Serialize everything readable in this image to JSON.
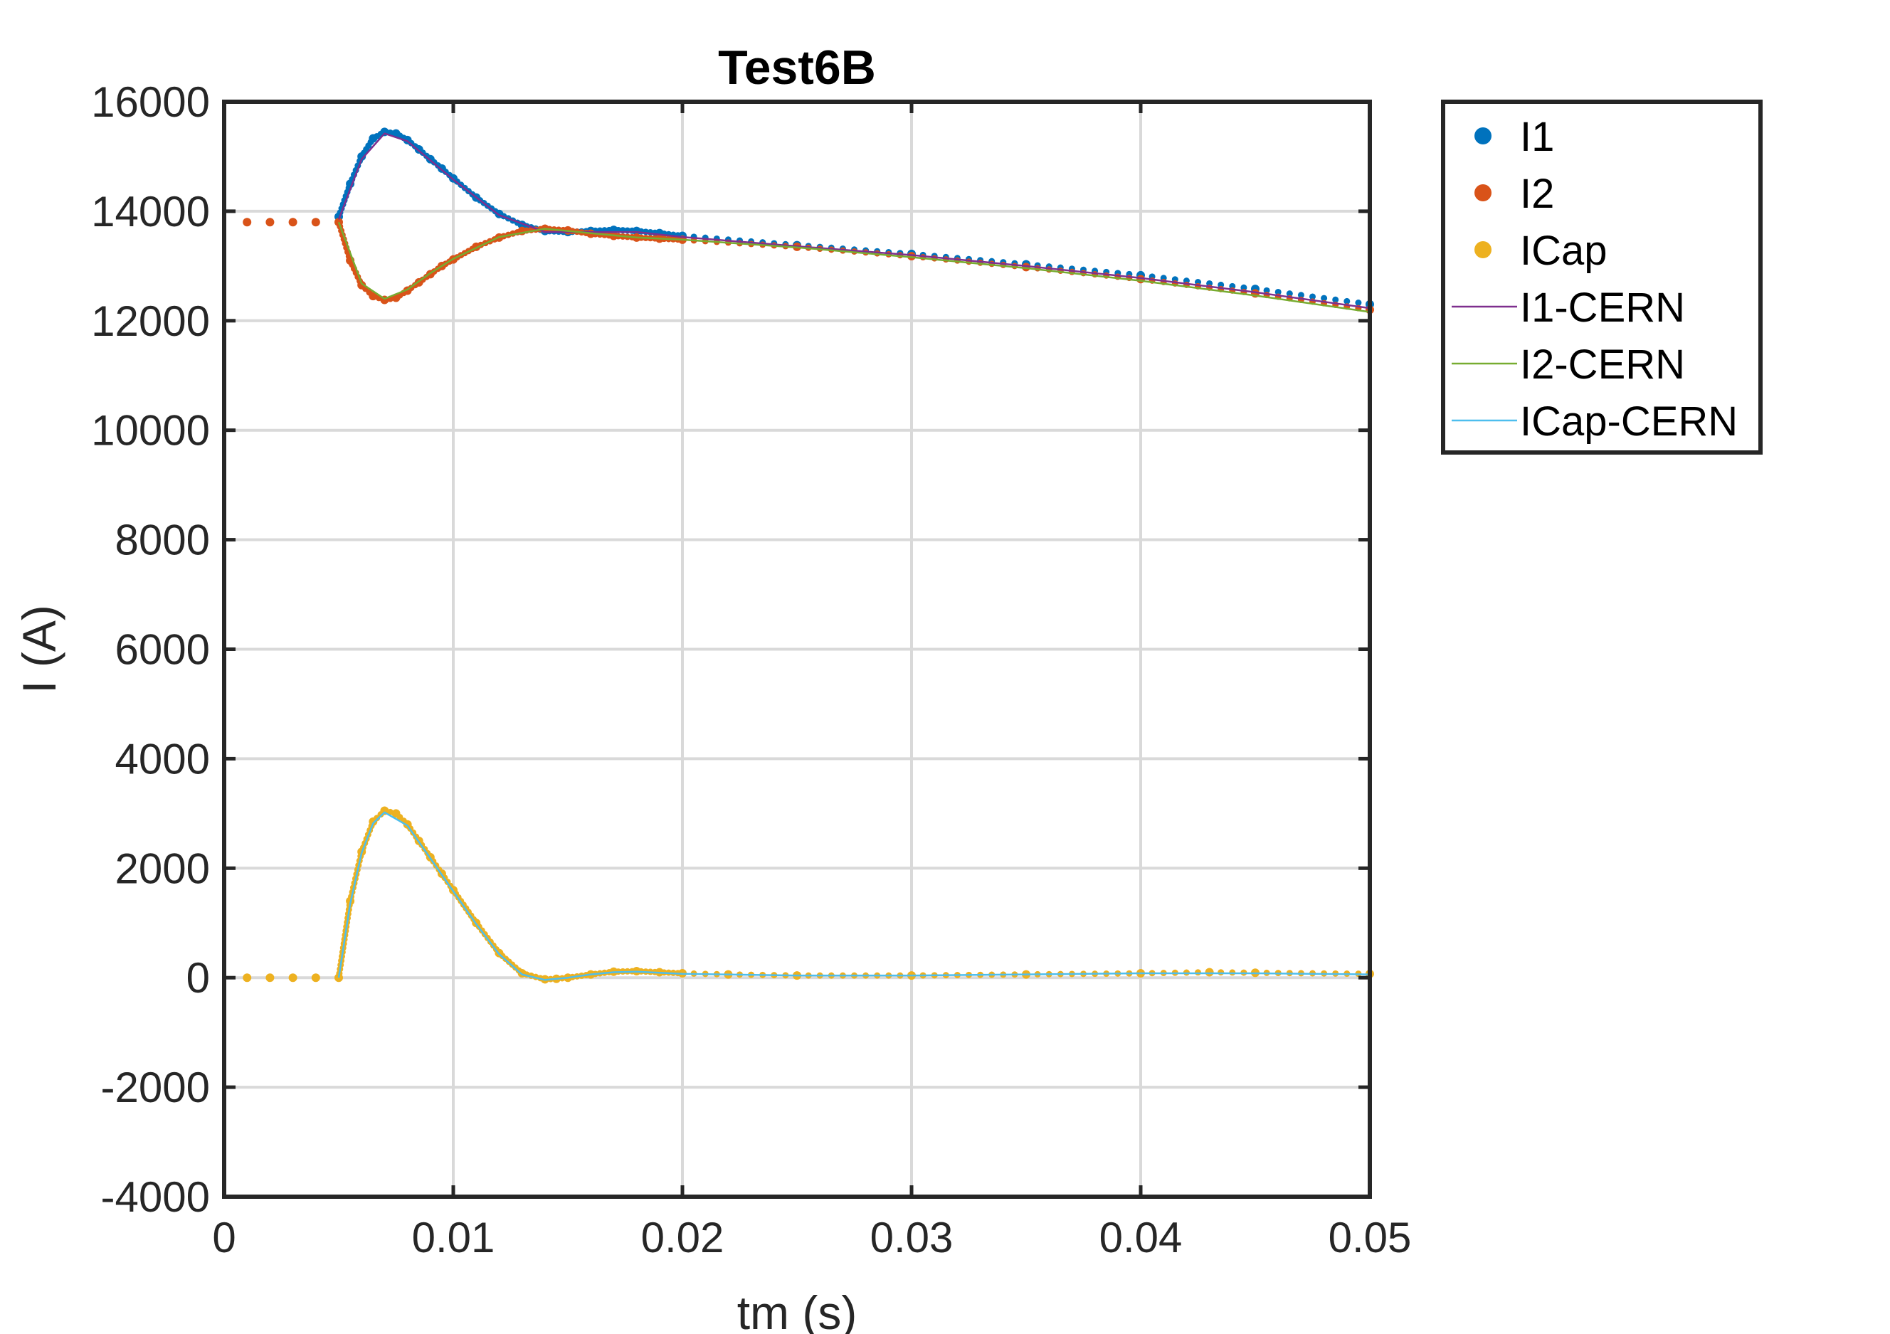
{
  "chart_data": {
    "type": "line",
    "title": "Test6B",
    "xlabel": "tm (s)",
    "ylabel": "I (A)",
    "xlim": [
      0,
      0.05
    ],
    "ylim": [
      -4000,
      16000
    ],
    "xticks": [
      0,
      0.01,
      0.02,
      0.03,
      0.04,
      0.05
    ],
    "xtick_labels": [
      "0",
      "0.01",
      "0.02",
      "0.03",
      "0.04",
      "0.05"
    ],
    "yticks": [
      -4000,
      -2000,
      0,
      2000,
      4000,
      6000,
      8000,
      10000,
      12000,
      14000,
      16000
    ],
    "ytick_labels": [
      "-4000",
      "-2000",
      "0",
      "2000",
      "4000",
      "6000",
      "8000",
      "10000",
      "12000",
      "14000",
      "16000"
    ],
    "grid": true,
    "legend_position": "outside-top-right",
    "series": [
      {
        "name": "I1",
        "style": "markers",
        "color": "#0072BD",
        "x": [
          0.005,
          0.0055,
          0.006,
          0.0065,
          0.007,
          0.0075,
          0.008,
          0.0085,
          0.009,
          0.0095,
          0.01,
          0.011,
          0.012,
          0.013,
          0.014,
          0.015,
          0.016,
          0.017,
          0.018,
          0.019,
          0.02,
          0.025,
          0.03,
          0.035,
          0.04,
          0.045,
          0.05
        ],
        "y": [
          13900,
          14500,
          15000,
          15330,
          15450,
          15420,
          15300,
          15130,
          14950,
          14780,
          14600,
          14250,
          13950,
          13750,
          13640,
          13620,
          13640,
          13660,
          13640,
          13600,
          13550,
          13380,
          13220,
          13030,
          12830,
          12580,
          12300
        ]
      },
      {
        "name": "I2",
        "style": "markers",
        "color": "#D95319",
        "x": [
          0.001,
          0.002,
          0.003,
          0.004,
          0.005,
          0.0055,
          0.006,
          0.0065,
          0.007,
          0.0075,
          0.008,
          0.0085,
          0.009,
          0.0095,
          0.01,
          0.011,
          0.012,
          0.013,
          0.014,
          0.015,
          0.016,
          0.017,
          0.018,
          0.019,
          0.02,
          0.025,
          0.03,
          0.035,
          0.04,
          0.045,
          0.05
        ],
        "y": [
          13800,
          13800,
          13800,
          13800,
          13800,
          13100,
          12650,
          12450,
          12380,
          12420,
          12550,
          12700,
          12850,
          13000,
          13120,
          13350,
          13520,
          13640,
          13680,
          13650,
          13590,
          13550,
          13520,
          13500,
          13480,
          13350,
          13180,
          12980,
          12760,
          12500,
          12200
        ]
      },
      {
        "name": "ICap",
        "style": "markers",
        "color": "#EDB120",
        "x": [
          0.001,
          0.002,
          0.003,
          0.004,
          0.005,
          0.0055,
          0.006,
          0.0065,
          0.007,
          0.0075,
          0.008,
          0.0085,
          0.009,
          0.0095,
          0.01,
          0.011,
          0.012,
          0.013,
          0.014,
          0.0145,
          0.015,
          0.016,
          0.017,
          0.018,
          0.019,
          0.02,
          0.022,
          0.025,
          0.03,
          0.035,
          0.04,
          0.043,
          0.045,
          0.05
        ],
        "y": [
          0,
          0,
          0,
          0,
          0,
          1400,
          2300,
          2850,
          3050,
          3000,
          2800,
          2500,
          2200,
          1900,
          1600,
          1000,
          450,
          80,
          -30,
          -20,
          0,
          60,
          110,
          120,
          100,
          80,
          60,
          40,
          40,
          60,
          80,
          100,
          90,
          70
        ]
      },
      {
        "name": "I1-CERN",
        "style": "line",
        "color": "#7E2F8E",
        "x": [
          0.005,
          0.006,
          0.007,
          0.008,
          0.009,
          0.01,
          0.012,
          0.014,
          0.016,
          0.018,
          0.02,
          0.025,
          0.03,
          0.035,
          0.04,
          0.045,
          0.05
        ],
        "y": [
          13850,
          14950,
          15420,
          15280,
          14930,
          14580,
          13930,
          13620,
          13620,
          13620,
          13530,
          13360,
          13200,
          13000,
          12780,
          12520,
          12230
        ]
      },
      {
        "name": "I2-CERN",
        "style": "line",
        "color": "#77AC30",
        "x": [
          0.005,
          0.006,
          0.007,
          0.008,
          0.009,
          0.01,
          0.012,
          0.014,
          0.016,
          0.018,
          0.02,
          0.025,
          0.03,
          0.035,
          0.04,
          0.045,
          0.05
        ],
        "y": [
          13800,
          12680,
          12400,
          12570,
          12870,
          13130,
          13530,
          13680,
          13600,
          13520,
          13480,
          13340,
          13160,
          12960,
          12730,
          12460,
          12160
        ]
      },
      {
        "name": "ICap-CERN",
        "style": "line",
        "color": "#4DBEEE",
        "x": [
          0.005,
          0.0055,
          0.006,
          0.0065,
          0.007,
          0.008,
          0.009,
          0.01,
          0.011,
          0.012,
          0.013,
          0.014,
          0.015,
          0.016,
          0.017,
          0.018,
          0.019,
          0.02,
          0.025,
          0.03,
          0.035,
          0.04,
          0.045,
          0.05
        ],
        "y": [
          0,
          1350,
          2280,
          2820,
          3020,
          2780,
          2180,
          1580,
          980,
          430,
          60,
          -40,
          0,
          60,
          100,
          110,
          90,
          70,
          40,
          40,
          60,
          80,
          80,
          60
        ]
      }
    ]
  }
}
